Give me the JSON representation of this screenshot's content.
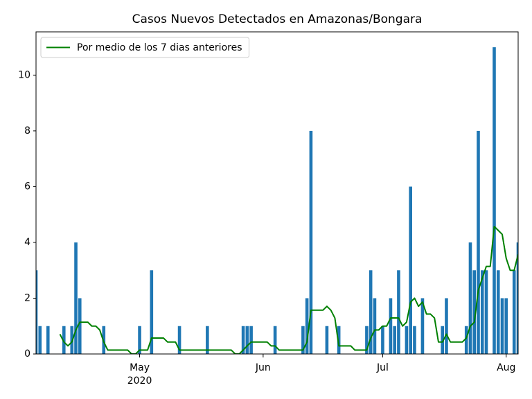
{
  "chart_data": {
    "type": "bar",
    "title": "Casos Nuevos Detectados en Amazonas/Bongara",
    "x": [
      0,
      1,
      2,
      3,
      4,
      5,
      6,
      7,
      8,
      9,
      10,
      11,
      12,
      13,
      14,
      15,
      16,
      17,
      18,
      19,
      20,
      21,
      22,
      23,
      24,
      25,
      26,
      27,
      28,
      29,
      30,
      31,
      32,
      33,
      34,
      35,
      36,
      37,
      38,
      39,
      40,
      41,
      42,
      43,
      44,
      45,
      46,
      47,
      48,
      49,
      50,
      51,
      52,
      53,
      54,
      55,
      56,
      57,
      58,
      59,
      60,
      61,
      62,
      63,
      64,
      65,
      66,
      67,
      68,
      69,
      70,
      71,
      72,
      73,
      74,
      75,
      76,
      77,
      78,
      79,
      80,
      81,
      82,
      83,
      84,
      85,
      86,
      87,
      88,
      89,
      90,
      91,
      92,
      93,
      94,
      95,
      96,
      97,
      98,
      99,
      100,
      101,
      102,
      103,
      104,
      105,
      106,
      107,
      108,
      109,
      110,
      111,
      112,
      113,
      114,
      115,
      116,
      117,
      118,
      119,
      120,
      121
    ],
    "values": [
      3,
      1,
      0,
      1,
      0,
      0,
      0,
      1,
      0,
      1,
      4,
      2,
      0,
      0,
      0,
      0,
      0,
      1,
      0,
      0,
      0,
      0,
      0,
      0,
      0,
      0,
      1,
      0,
      0,
      3,
      0,
      0,
      0,
      0,
      0,
      0,
      1,
      0,
      0,
      0,
      0,
      0,
      0,
      1,
      0,
      0,
      0,
      0,
      0,
      0,
      0,
      0,
      1,
      1,
      1,
      0,
      0,
      0,
      0,
      0,
      1,
      0,
      0,
      0,
      0,
      0,
      0,
      1,
      2,
      8,
      0,
      0,
      0,
      1,
      0,
      0,
      1,
      0,
      0,
      0,
      0,
      0,
      0,
      1,
      3,
      2,
      0,
      1,
      0,
      2,
      1,
      3,
      0,
      1,
      6,
      1,
      0,
      2,
      0,
      0,
      0,
      0,
      1,
      2,
      0,
      0,
      0,
      0,
      1,
      4,
      3,
      8,
      3,
      3,
      0,
      11,
      3,
      2,
      2,
      0,
      3,
      4
    ],
    "color": "#1f77b4",
    "line": {
      "name": "Por medio de los 7 dias anteriores",
      "color": "#008000",
      "values": [
        null,
        null,
        null,
        null,
        null,
        null,
        0.71,
        0.43,
        0.29,
        0.43,
        0.86,
        1.14,
        1.14,
        1.14,
        1,
        1,
        0.86,
        0.43,
        0.14,
        0.14,
        0.14,
        0.14,
        0.14,
        0.14,
        0,
        0,
        0.14,
        0.14,
        0.14,
        0.57,
        0.57,
        0.57,
        0.57,
        0.43,
        0.43,
        0.43,
        0.14,
        0.14,
        0.14,
        0.14,
        0.14,
        0.14,
        0.14,
        0.14,
        0.14,
        0.14,
        0.14,
        0.14,
        0.14,
        0.14,
        0,
        0,
        0.14,
        0.29,
        0.43,
        0.43,
        0.43,
        0.43,
        0.43,
        0.29,
        0.29,
        0.14,
        0.14,
        0.14,
        0.14,
        0.14,
        0.14,
        0.14,
        0.43,
        1.57,
        1.57,
        1.57,
        1.57,
        1.71,
        1.57,
        1.29,
        0.29,
        0.29,
        0.29,
        0.29,
        0.14,
        0.14,
        0.14,
        0.14,
        0.57,
        0.86,
        0.86,
        1,
        1,
        1.29,
        1.29,
        1.29,
        1,
        1.14,
        1.86,
        2,
        1.71,
        1.86,
        1.43,
        1.43,
        1.29,
        0.43,
        0.43,
        0.71,
        0.43,
        0.43,
        0.43,
        0.43,
        0.57,
        1,
        1.14,
        2.29,
        2.71,
        3.14,
        3.14,
        4.57,
        4.43,
        4.29,
        3.43,
        3,
        3,
        3.57
      ]
    },
    "xlim": [
      0,
      121
    ],
    "xticks": [
      {
        "value": 26,
        "label": "May\n2020"
      },
      {
        "value": 57,
        "label": "Jun"
      },
      {
        "value": 87,
        "label": "Jul"
      },
      {
        "value": 118,
        "label": "Aug"
      }
    ],
    "ylim": [
      0,
      11.55
    ],
    "yticks": [
      0,
      2,
      4,
      6,
      8,
      10
    ],
    "grid": false,
    "legend": "upper left"
  }
}
